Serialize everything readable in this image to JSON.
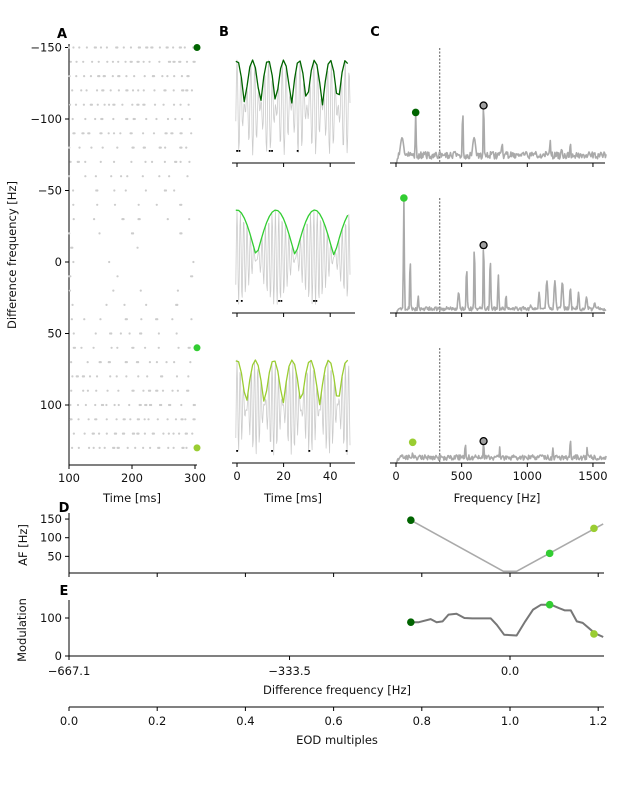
{
  "colors": {
    "dark_green": "#006400",
    "green": "#32cd32",
    "yellow_green": "#9acd32",
    "spectrum_gray": "#aaaaaa",
    "signal_gray": "#cccccc",
    "raster_gray": "#cccccc",
    "peak_marker_gray": "#a0a0a0"
  },
  "chart_data": [
    {
      "panel": "A",
      "type": "scatter",
      "xlabel": "Time [ms]",
      "ylabel": "Difference frequency [Hz]",
      "xlim": [
        100,
        300
      ],
      "ylim": [
        -150,
        141
      ],
      "y_inverted": true,
      "xticks": [
        "100",
        "200",
        "300"
      ],
      "xtick_values": [
        100,
        200,
        300
      ],
      "yticks": [
        "−150",
        "−100",
        "−50",
        "0",
        "50",
        "100"
      ],
      "ytick_values": [
        -150,
        -100,
        -50,
        0,
        50,
        100
      ],
      "rows": [
        -150,
        -140,
        -130,
        -120,
        -110,
        -100,
        -90,
        -80,
        -70,
        -60,
        -50,
        -40,
        -30,
        -20,
        -10,
        0,
        10,
        20,
        30,
        40,
        50,
        60,
        70,
        80,
        90,
        100,
        110,
        120,
        130
      ],
      "markers": [
        {
          "df": -150,
          "color": "#006400"
        },
        {
          "df": 60,
          "color": "#32cd32"
        },
        {
          "df": 130,
          "color": "#9acd32"
        }
      ]
    },
    {
      "panel": "B",
      "type": "line",
      "xlabel": "Time [ms]",
      "xlim": [
        -2,
        50
      ],
      "xticks": [
        "0",
        "20",
        "40"
      ],
      "xtick_values": [
        0,
        20,
        40
      ],
      "eod_frequency": 667.1,
      "traces": [
        {
          "df": -150,
          "color": "#006400",
          "spikes": [
            0,
            1,
            14,
            15,
            26
          ]
        },
        {
          "df": 60,
          "color": "#32cd32",
          "spikes": [
            0,
            2,
            18,
            19,
            33,
            34
          ]
        },
        {
          "df": 127,
          "color": "#9acd32",
          "spikes": [
            0,
            15,
            31,
            47
          ]
        }
      ]
    },
    {
      "panel": "C",
      "type": "line",
      "xlabel": "Frequency [Hz]",
      "xlim": [
        -30,
        1600
      ],
      "xticks": [
        "0",
        "500",
        "1000",
        "1500"
      ],
      "xtick_values": [
        0,
        500,
        1000,
        1500
      ],
      "cutoff_line": 333.5,
      "spectra": [
        {
          "color": "#006400",
          "marker": [
            150,
            0.44
          ],
          "eod_marker": [
            667,
            0.5
          ],
          "baseline": 0.07,
          "peaks": [
            [
              46,
              0.22,
              20
            ],
            [
              150,
              0.44,
              5
            ],
            [
              205,
              0.05,
              8
            ],
            [
              287,
              0.05,
              8
            ],
            [
              367,
              0.07,
              8
            ],
            [
              449,
              0.1,
              15
            ],
            [
              508,
              0.48,
              5
            ],
            [
              595,
              0.22,
              18
            ],
            [
              667,
              0.55,
              5
            ],
            [
              738,
              0.1,
              12
            ],
            [
              808,
              0.18,
              6
            ],
            [
              915,
              0.03,
              10
            ],
            [
              1026,
              0.05,
              10
            ],
            [
              1064,
              0.1,
              8
            ],
            [
              1123,
              0.08,
              15
            ],
            [
              1174,
              0.2,
              6
            ],
            [
              1262,
              0.12,
              10
            ],
            [
              1328,
              0.18,
              6
            ],
            [
              1410,
              0.07,
              8
            ],
            [
              1585,
              0.06,
              10
            ]
          ]
        },
        {
          "color": "#32cd32",
          "marker": [
            60,
            1.0
          ],
          "eod_marker": [
            667,
            0.59
          ],
          "baseline": 0.04,
          "peaks": [
            [
              60,
              1.0,
              5
            ],
            [
              108,
              0.5,
              5
            ],
            [
              169,
              0.15,
              6
            ],
            [
              244,
              0.04,
              8
            ],
            [
              477,
              0.18,
              10
            ],
            [
              538,
              0.4,
              6
            ],
            [
              597,
              0.62,
              5
            ],
            [
              667,
              0.64,
              5
            ],
            [
              718,
              0.48,
              6
            ],
            [
              779,
              0.34,
              6
            ],
            [
              838,
              0.16,
              6
            ],
            [
              1026,
              0.07,
              8
            ],
            [
              1090,
              0.18,
              8
            ],
            [
              1149,
              0.28,
              10
            ],
            [
              1210,
              0.28,
              10
            ],
            [
              1267,
              0.27,
              10
            ],
            [
              1328,
              0.22,
              8
            ],
            [
              1390,
              0.18,
              8
            ],
            [
              1451,
              0.14,
              10
            ],
            [
              1513,
              0.09,
              10
            ]
          ]
        },
        {
          "color": "#9acd32",
          "marker": [
            127,
            0.18
          ],
          "eod_marker": [
            667,
            0.19
          ],
          "baseline": 0.05,
          "peaks": [
            [
              51,
              0.05,
              12
            ],
            [
              127,
              0.1,
              5
            ],
            [
              251,
              0.05,
              8
            ],
            [
              397,
              0.05,
              8
            ],
            [
              528,
              0.18,
              5
            ],
            [
              595,
              0.03,
              8
            ],
            [
              667,
              0.19,
              5
            ],
            [
              790,
              0.14,
              5
            ],
            [
              918,
              0.04,
              6
            ],
            [
              1059,
              0.03,
              8
            ],
            [
              1195,
              0.13,
              6
            ],
            [
              1328,
              0.22,
              5
            ],
            [
              1456,
              0.14,
              5
            ],
            [
              1590,
              0.05,
              8
            ]
          ]
        }
      ]
    },
    {
      "panel": "D",
      "type": "line",
      "ylabel": "AF [Hz]",
      "ylim": [
        5,
        155
      ],
      "yticks": [
        "50",
        "100",
        "150"
      ],
      "ytick_values": [
        50,
        100,
        150
      ],
      "x": [
        -150,
        -10,
        10,
        141
      ],
      "y": [
        147,
        10,
        10,
        137
      ],
      "markers": [
        {
          "x": -150,
          "y": 147,
          "color": "#006400"
        },
        {
          "x": 60,
          "y": 58,
          "color": "#32cd32"
        },
        {
          "x": 127,
          "y": 125,
          "color": "#9acd32"
        }
      ]
    },
    {
      "panel": "E",
      "type": "line",
      "ylabel": "Modulation",
      "ylim": [
        0,
        145
      ],
      "yticks": [
        "0",
        "100"
      ],
      "ytick_values": [
        0,
        100
      ],
      "xlabel": "Difference frequency [Hz]",
      "xlim": [
        -667.1,
        141
      ],
      "xticks": [
        "−667.1",
        "−333.5",
        "0.0"
      ],
      "xtick_values": [
        -667.1,
        -333.5,
        0
      ],
      "x": [
        -150,
        -138,
        -120,
        -111,
        -102,
        -93,
        -81,
        -69,
        -57,
        -29,
        -20,
        -9,
        10,
        23,
        35,
        47,
        62,
        74,
        83,
        92,
        101,
        110,
        125,
        131,
        141
      ],
      "y": [
        89,
        89,
        97,
        89,
        91,
        109,
        111,
        100,
        99,
        99,
        82,
        56,
        54,
        91,
        122,
        135,
        135,
        126,
        120,
        120,
        91,
        87,
        65,
        58,
        50
      ],
      "markers": [
        {
          "x": -150,
          "y": 89,
          "color": "#006400"
        },
        {
          "x": 60,
          "y": 135,
          "color": "#32cd32"
        },
        {
          "x": 127,
          "y": 58,
          "color": "#9acd32"
        }
      ]
    },
    {
      "panel": "EOD axis",
      "type": "axis",
      "xlabel": "EOD multiples",
      "xlim": [
        0,
        1.211
      ],
      "xticks": [
        "0.0",
        "0.2",
        "0.4",
        "0.6",
        "0.8",
        "1.0",
        "1.2"
      ],
      "xtick_values": [
        0,
        0.2,
        0.4,
        0.6,
        0.8,
        1.0,
        1.2
      ]
    }
  ]
}
